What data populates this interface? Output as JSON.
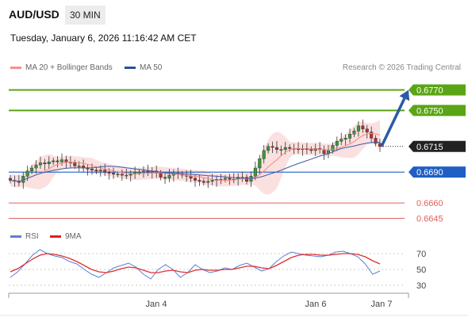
{
  "header": {
    "symbol": "AUD/USD",
    "timeframe": "30 MIN",
    "datetime": "Tuesday, January 6, 2026 11:16:42 AM CET"
  },
  "legend": {
    "ma20": "MA 20 + Bollinger Bands",
    "ma50": "MA 50",
    "source": "Research © 2026 Trading Central"
  },
  "rsi_legend": {
    "rsi": "RSI",
    "ma9": "9MA"
  },
  "colors": {
    "up_level": "#5aa515",
    "pivot": "#1f5fc5",
    "down_level": "#e06060",
    "current": "#222222",
    "arrow": "#2b5aa8",
    "bands": "#f8cccc",
    "ma20": "#f08a8a",
    "ma50": "#3b5aa8",
    "rsi": "#5b7fd6",
    "rsi_ma": "#e03030"
  },
  "chart_data": [
    {
      "type": "candlestick",
      "title": "AUD/USD 30 MIN",
      "ylim": [
        0.664,
        0.6785
      ],
      "x_ticks": [
        "Jan 4",
        "Jan 6",
        "Jan 7"
      ],
      "price_path": [
        0.6682,
        0.6681,
        0.668,
        0.6686,
        0.6691,
        0.6694,
        0.6697,
        0.6699,
        0.6698,
        0.67,
        0.6701,
        0.67,
        0.6702,
        0.67,
        0.6699,
        0.6696,
        0.6696,
        0.6694,
        0.6693,
        0.6692,
        0.6691,
        0.6692,
        0.669,
        0.6689,
        0.6688,
        0.6688,
        0.6687,
        0.6687,
        0.6688,
        0.669,
        0.669,
        0.6691,
        0.669,
        0.6691,
        0.6689,
        0.6685,
        0.6684,
        0.6687,
        0.6689,
        0.6688,
        0.6687,
        0.6686,
        0.6684,
        0.6682,
        0.6681,
        0.668,
        0.6681,
        0.6682,
        0.6683,
        0.6683,
        0.6684,
        0.6683,
        0.6683,
        0.6685,
        0.6685,
        0.6681,
        0.6686,
        0.6694,
        0.6703,
        0.6711,
        0.6715,
        0.6714,
        0.6712,
        0.6712,
        0.6714,
        0.6713,
        0.6713,
        0.6712,
        0.6713,
        0.6712,
        0.6711,
        0.6713,
        0.6712,
        0.6708,
        0.6711,
        0.6716,
        0.672,
        0.6722,
        0.6723,
        0.6727,
        0.673,
        0.6735,
        0.6732,
        0.6729,
        0.6723,
        0.6718,
        0.6715
      ],
      "lines": [
        {
          "label": "0.6770",
          "value": 0.677,
          "kind": "resistance"
        },
        {
          "label": "0.6750",
          "value": 0.675,
          "kind": "resistance"
        },
        {
          "label": "0.6715",
          "value": 0.6715,
          "kind": "current"
        },
        {
          "label": "0.6690",
          "value": 0.669,
          "kind": "pivot"
        },
        {
          "label": "0.6660",
          "value": 0.666,
          "kind": "support"
        },
        {
          "label": "0.6645",
          "value": 0.6645,
          "kind": "support"
        }
      ],
      "forecast": {
        "from": 0.6715,
        "to": 0.677
      }
    },
    {
      "type": "line",
      "title": "RSI",
      "ylim": [
        25,
        85
      ],
      "yticks": [
        70,
        50,
        30
      ],
      "series": [
        {
          "name": "RSI",
          "values": [
            40,
            47,
            57,
            68,
            75,
            70,
            67,
            65,
            60,
            57,
            50,
            44,
            40,
            46,
            52,
            55,
            58,
            53,
            44,
            38,
            50,
            56,
            50,
            40,
            46,
            56,
            50,
            46,
            48,
            52,
            50,
            55,
            58,
            53,
            48,
            51,
            60,
            67,
            72,
            70,
            68,
            67,
            66,
            68,
            72,
            73,
            70,
            66,
            57,
            44,
            48
          ]
        },
        {
          "name": "9MA",
          "values": [
            47,
            51,
            57,
            63,
            68,
            70,
            69,
            67,
            64,
            60,
            55,
            50,
            47,
            46,
            48,
            51,
            53,
            52,
            49,
            46,
            46,
            48,
            49,
            47,
            46,
            49,
            50,
            49,
            49,
            50,
            50,
            52,
            54,
            54,
            52,
            51,
            55,
            60,
            65,
            68,
            69,
            69,
            68,
            68,
            69,
            70,
            70,
            69,
            66,
            61,
            57
          ]
        }
      ]
    }
  ]
}
